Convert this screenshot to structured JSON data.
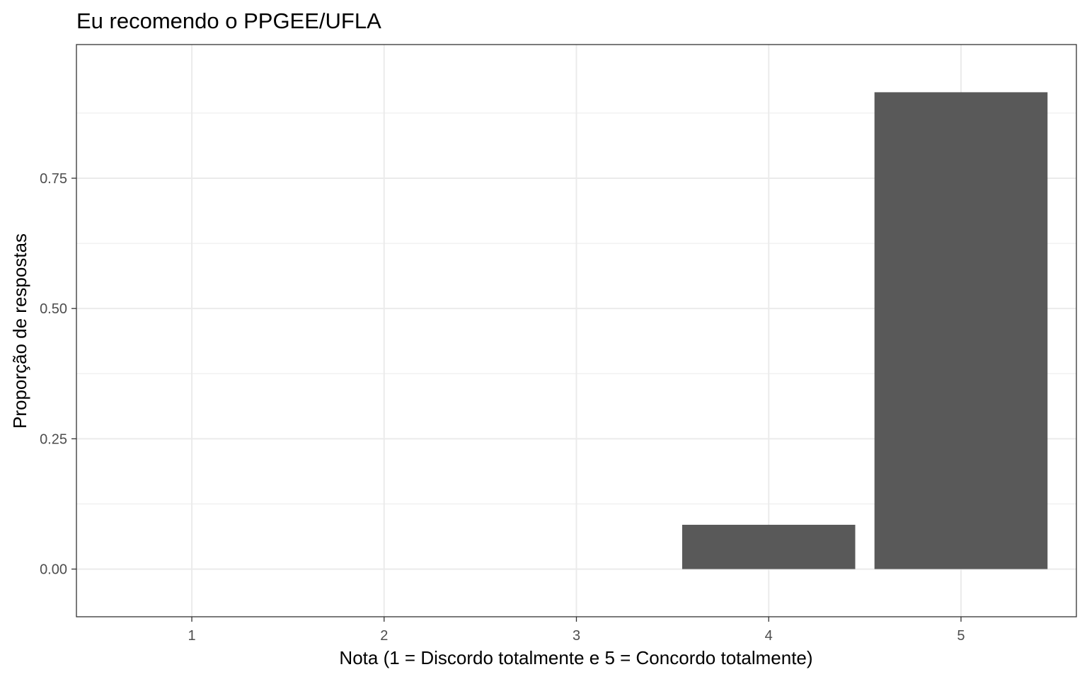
{
  "chart_data": {
    "type": "bar",
    "title": "Eu recomendo o PPGEE/UFLA",
    "xlabel": "Nota (1 = Discordo totalmente e 5 = Concordo totalmente)",
    "ylabel": "Proporção de respostas",
    "categories": [
      "1",
      "2",
      "3",
      "4",
      "5"
    ],
    "values": [
      0,
      0,
      0,
      0.085,
      0.915
    ],
    "ylim": [
      -0.0915,
      1.0065
    ],
    "yticks": [
      0,
      0.25,
      0.5,
      0.75
    ],
    "ytick_labels": [
      "0.00",
      "0.25",
      "0.50",
      "0.75"
    ],
    "grid": true,
    "legend": "none",
    "colors": {
      "bar": "#595959",
      "grid": "#ebebeb",
      "panel_border": "#333333",
      "tick_text": "#4d4d4d"
    }
  }
}
